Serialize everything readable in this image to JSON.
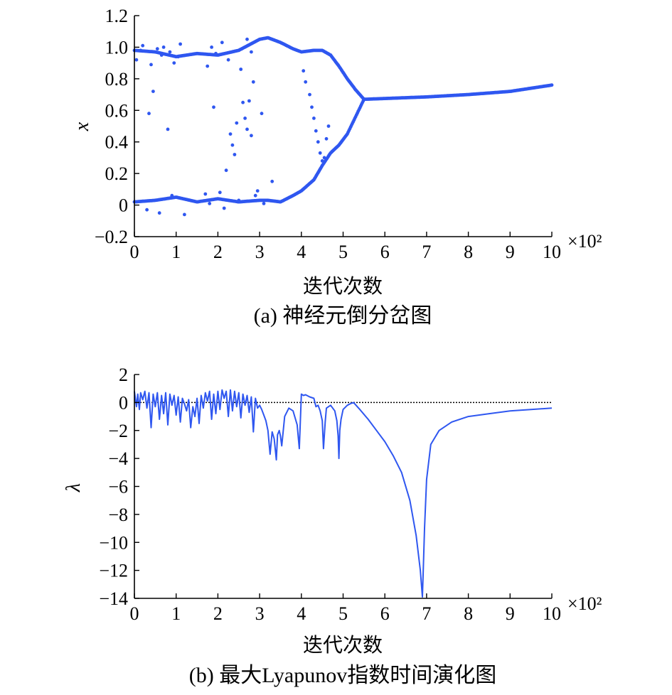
{
  "accent_color": "#2f57f0",
  "chart_data": [
    {
      "type": "scatter",
      "caption": "(a) 神经元倒分岔图",
      "xlabel": "迭代次数",
      "ylabel": "x",
      "x_multiplier_label": "×10²",
      "xlim": [
        0,
        10
      ],
      "ylim": [
        -0.2,
        1.2
      ],
      "xticks": [
        "0",
        "1",
        "2",
        "3",
        "4",
        "5",
        "6",
        "7",
        "8",
        "9",
        "10"
      ],
      "yticks": [
        "−0.2",
        "0",
        "0.2",
        "0.4",
        "0.6",
        "0.8",
        "1.0",
        "1.2"
      ],
      "ytick_values": [
        -0.2,
        0,
        0.2,
        0.4,
        0.6,
        0.8,
        1.0,
        1.2
      ],
      "grid": false,
      "branches": [
        {
          "name": "upper",
          "x": [
            0,
            0.5,
            1.0,
            1.5,
            2.0,
            2.5,
            3.0,
            3.2,
            3.5,
            3.8,
            4.0,
            4.3,
            4.5,
            4.7,
            4.9,
            5.1,
            5.3,
            5.5
          ],
          "y": [
            0.98,
            0.97,
            0.94,
            0.96,
            0.95,
            0.98,
            1.05,
            1.06,
            1.03,
            0.99,
            0.97,
            0.98,
            0.98,
            0.95,
            0.88,
            0.8,
            0.73,
            0.67
          ]
        },
        {
          "name": "lower",
          "x": [
            0,
            0.5,
            1.0,
            1.5,
            2.0,
            2.5,
            3.0,
            3.2,
            3.5,
            3.8,
            4.0,
            4.3,
            4.5,
            4.7,
            4.9,
            5.1,
            5.3,
            5.5
          ],
          "y": [
            0.02,
            0.03,
            0.05,
            0.02,
            0.04,
            0.02,
            0.03,
            0.03,
            0.02,
            0.06,
            0.09,
            0.16,
            0.25,
            0.33,
            0.38,
            0.45,
            0.56,
            0.67
          ]
        },
        {
          "name": "fixed",
          "x": [
            5.5,
            6,
            7,
            8,
            9,
            10
          ],
          "y": [
            0.67,
            0.675,
            0.685,
            0.7,
            0.72,
            0.76
          ]
        }
      ],
      "scatter_points": {
        "x": [
          0.15,
          0.35,
          0.45,
          0.65,
          0.8,
          0.85,
          1.05,
          1.9,
          1.95,
          2.2,
          2.3,
          2.35,
          2.4,
          2.45,
          2.55,
          2.6,
          2.65,
          2.7,
          2.75,
          2.8,
          2.85,
          0.3,
          0.6,
          0.9,
          1.2,
          1.7,
          1.8,
          2.05,
          2.15,
          2.5,
          2.9,
          2.95,
          3.1,
          3.3,
          4.05,
          4.1,
          4.2,
          4.25,
          4.3,
          4.35,
          4.4,
          4.45,
          4.5,
          4.55,
          4.6,
          4.65,
          0.05,
          0.2,
          0.4,
          0.55,
          0.7,
          0.95,
          1.1,
          1.75,
          1.85,
          2.1,
          2.25,
          2.7,
          2.8,
          3.05
        ],
        "y": [
          0.98,
          0.58,
          0.72,
          0.95,
          0.48,
          0.97,
          0.94,
          0.62,
          0.96,
          0.22,
          0.45,
          0.38,
          0.32,
          0.52,
          0.86,
          0.65,
          0.55,
          0.48,
          0.66,
          0.44,
          0.78,
          -0.03,
          -0.05,
          0.06,
          -0.06,
          0.07,
          0.01,
          0.08,
          -0.02,
          0.03,
          0.06,
          0.09,
          0.01,
          0.15,
          0.85,
          0.78,
          0.7,
          0.62,
          0.55,
          0.47,
          0.4,
          0.33,
          0.28,
          0.3,
          0.42,
          0.5,
          0.92,
          1.01,
          0.89,
          0.99,
          1.0,
          0.9,
          1.02,
          0.88,
          1.0,
          1.03,
          0.92,
          1.05,
          0.97,
          0.58
        ]
      }
    },
    {
      "type": "line",
      "caption": "(b) 最大Lyapunov指数时间演化图",
      "xlabel": "迭代次数",
      "ylabel": "λ",
      "x_multiplier_label": "×10²",
      "xlim": [
        0,
        10
      ],
      "ylim": [
        -14,
        2
      ],
      "xticks": [
        "0",
        "1",
        "2",
        "3",
        "4",
        "5",
        "6",
        "7",
        "8",
        "9",
        "10"
      ],
      "yticks": [
        "−14",
        "−12",
        "−10",
        "−8",
        "−6",
        "−4",
        "−2",
        "0",
        "2"
      ],
      "ytick_values": [
        -14,
        -12,
        -10,
        -8,
        -6,
        -4,
        -2,
        0,
        2
      ],
      "grid": false,
      "reference_line_y": 0,
      "series": [
        {
          "x": [
            0,
            0.05,
            0.08,
            0.12,
            0.15,
            0.2,
            0.25,
            0.3,
            0.35,
            0.4,
            0.45,
            0.5,
            0.55,
            0.6,
            0.65,
            0.7,
            0.75,
            0.8,
            0.85,
            0.9,
            0.95,
            1.0,
            1.05,
            1.1,
            1.15,
            1.2,
            1.25,
            1.3,
            1.35,
            1.4,
            1.45,
            1.5,
            1.55,
            1.6,
            1.65,
            1.7,
            1.75,
            1.8,
            1.85,
            1.9,
            1.95,
            2.0,
            2.05,
            2.1,
            2.15,
            2.2,
            2.25,
            2.3,
            2.35,
            2.4,
            2.45,
            2.5,
            2.55,
            2.6,
            2.65,
            2.7,
            2.75,
            2.8,
            2.85,
            2.9,
            2.95,
            3.0,
            3.05,
            3.1,
            3.15,
            3.2,
            3.25,
            3.3,
            3.35,
            3.4,
            3.43,
            3.47,
            3.5,
            3.53,
            3.6,
            3.7,
            3.8,
            3.9,
            3.95,
            4.0,
            4.05,
            4.1,
            4.2,
            4.3,
            4.35,
            4.4,
            4.45,
            4.5,
            4.53,
            4.57,
            4.6,
            4.7,
            4.8,
            4.85,
            4.88,
            4.9,
            4.92,
            4.95,
            5.0,
            5.1,
            5.2,
            5.25,
            5.4,
            5.6,
            5.8,
            6.0,
            6.2,
            6.4,
            6.6,
            6.75,
            6.85,
            6.9,
            6.92,
            6.95,
            7.0,
            7.1,
            7.3,
            7.6,
            8.0,
            8.5,
            9.0,
            9.5,
            10.0
          ],
          "y": [
            0.8,
            -0.3,
            0.6,
            -0.5,
            0.7,
            0.2,
            0.8,
            -0.4,
            0.7,
            -1.8,
            0.6,
            -0.3,
            0.7,
            -1.2,
            0.5,
            -0.8,
            0.7,
            -1.6,
            0.6,
            -0.2,
            0.5,
            -0.9,
            0.4,
            -1.4,
            0.3,
            -0.1,
            -0.6,
            0.2,
            -1.8,
            -0.3,
            -1.0,
            0.3,
            -1.5,
            0.5,
            -0.4,
            0.7,
            0.1,
            0.8,
            -1.2,
            0.6,
            -0.8,
            0.8,
            -0.5,
            0.9,
            0.3,
            0.8,
            -1.0,
            0.9,
            -0.6,
            0.8,
            -0.3,
            0.7,
            -1.1,
            0.6,
            -0.2,
            0.5,
            -0.7,
            0.4,
            -2.1,
            0.3,
            -0.4,
            -0.2,
            -0.5,
            -0.9,
            -1.3,
            -2.0,
            -3.7,
            -2.1,
            -2.6,
            -4.1,
            -2.3,
            -2.0,
            -2.4,
            -3.1,
            -1.0,
            -0.4,
            -0.6,
            -1.6,
            -3.3,
            0.6,
            0.5,
            0.55,
            0.4,
            0.3,
            -0.3,
            -0.2,
            -0.6,
            -1.3,
            -3.3,
            -1.4,
            -0.4,
            -0.2,
            -0.6,
            -1.3,
            -2.4,
            -4.0,
            -2.0,
            -1.2,
            -0.5,
            -0.2,
            -0.05,
            0.0,
            -0.5,
            -1.2,
            -2.0,
            -2.8,
            -3.8,
            -5.0,
            -7.0,
            -9.5,
            -12.0,
            -13.9,
            -12.0,
            -9.0,
            -5.5,
            -3.0,
            -2.0,
            -1.4,
            -1.0,
            -0.8,
            -0.6,
            -0.5,
            -0.4
          ]
        }
      ]
    }
  ]
}
